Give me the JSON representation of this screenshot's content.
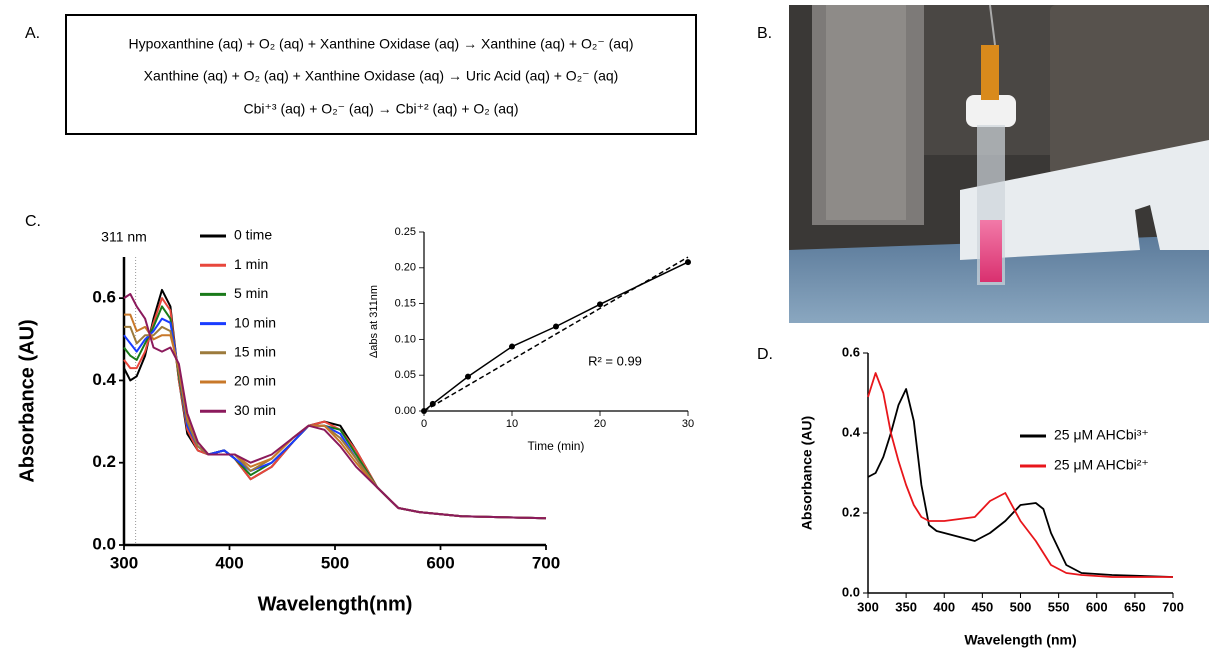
{
  "panels": {
    "a": "A.",
    "b": "B.",
    "c": "C.",
    "d": "D."
  },
  "reactions": [
    "Hypoxanthine (aq) + O₂ (aq) + Xanthine Oxidase (aq) → Xanthine (aq) + O₂⁻ (aq)",
    "Xanthine (aq) + O₂ (aq) + Xanthine Oxidase (aq) → Uric Acid (aq) + O₂⁻ (aq)",
    "Cbi⁺³ (aq) + O₂⁻ (aq) → Cbi⁺² (aq) + O₂ (aq)"
  ],
  "chart_data": [
    {
      "type": "line",
      "xlabel": "Wavelength(nm)",
      "ylabel": "Absorbance (AU)",
      "annotation": "311 nm",
      "marker_x": 311,
      "legend": "upper-center",
      "xlim": [
        300,
        700
      ],
      "xticks": [
        300,
        400,
        500,
        600,
        700
      ],
      "ylim": [
        0,
        0.7
      ],
      "yticks": [
        {
          "value": 0,
          "label": "0.0"
        },
        0.2,
        0.4,
        0.6
      ],
      "x": [
        300,
        306,
        312,
        320,
        328,
        336,
        344,
        352,
        360,
        370,
        380,
        395,
        405,
        420,
        440,
        460,
        475,
        490,
        505,
        520,
        540,
        560,
        580,
        620,
        700
      ],
      "series": [
        {
          "name": "0 time",
          "color": "#000000",
          "values": [
            0.43,
            0.4,
            0.41,
            0.46,
            0.55,
            0.62,
            0.58,
            0.4,
            0.27,
            0.23,
            0.22,
            0.23,
            0.21,
            0.16,
            0.19,
            0.25,
            0.29,
            0.3,
            0.29,
            0.23,
            0.14,
            0.09,
            0.08,
            0.07,
            0.065
          ]
        },
        {
          "name": "1 min",
          "color": "#e8473c",
          "values": [
            0.45,
            0.43,
            0.43,
            0.47,
            0.54,
            0.6,
            0.57,
            0.4,
            0.28,
            0.23,
            0.22,
            0.23,
            0.21,
            0.16,
            0.19,
            0.25,
            0.29,
            0.3,
            0.28,
            0.23,
            0.14,
            0.09,
            0.08,
            0.07,
            0.065
          ]
        },
        {
          "name": "5 min",
          "color": "#1a7a1a",
          "values": [
            0.48,
            0.46,
            0.45,
            0.49,
            0.53,
            0.58,
            0.55,
            0.41,
            0.29,
            0.24,
            0.22,
            0.23,
            0.21,
            0.17,
            0.2,
            0.25,
            0.29,
            0.29,
            0.28,
            0.22,
            0.14,
            0.09,
            0.08,
            0.07,
            0.065
          ]
        },
        {
          "name": "10 min",
          "color": "#1a3cff",
          "values": [
            0.51,
            0.49,
            0.47,
            0.5,
            0.52,
            0.55,
            0.54,
            0.42,
            0.29,
            0.24,
            0.22,
            0.23,
            0.21,
            0.18,
            0.2,
            0.25,
            0.29,
            0.29,
            0.27,
            0.21,
            0.14,
            0.09,
            0.08,
            0.07,
            0.065
          ]
        },
        {
          "name": "15 min",
          "color": "#9c7a3c",
          "values": [
            0.53,
            0.53,
            0.49,
            0.51,
            0.51,
            0.53,
            0.52,
            0.42,
            0.3,
            0.24,
            0.22,
            0.22,
            0.22,
            0.18,
            0.21,
            0.26,
            0.29,
            0.29,
            0.26,
            0.21,
            0.14,
            0.09,
            0.08,
            0.07,
            0.065
          ]
        },
        {
          "name": "20 min",
          "color": "#c8782a",
          "values": [
            0.56,
            0.56,
            0.52,
            0.53,
            0.5,
            0.51,
            0.51,
            0.43,
            0.31,
            0.25,
            0.22,
            0.22,
            0.22,
            0.19,
            0.21,
            0.26,
            0.29,
            0.29,
            0.25,
            0.2,
            0.14,
            0.09,
            0.08,
            0.07,
            0.065
          ]
        },
        {
          "name": "30 min",
          "color": "#8b1a5c",
          "values": [
            0.6,
            0.61,
            0.58,
            0.55,
            0.48,
            0.47,
            0.48,
            0.44,
            0.32,
            0.25,
            0.22,
            0.22,
            0.22,
            0.2,
            0.22,
            0.26,
            0.29,
            0.28,
            0.24,
            0.19,
            0.14,
            0.09,
            0.08,
            0.07,
            0.065
          ]
        }
      ]
    },
    {
      "type": "line",
      "xlabel": "Time (min)",
      "ylabel": "Δabs at 311nm",
      "annotation": "R² = 0.99",
      "color": "#000000",
      "xlim": [
        0,
        30
      ],
      "xticks": [
        0,
        10,
        20,
        30
      ],
      "ylim": [
        0,
        0.25
      ],
      "yticks": [
        {
          "value": 0,
          "label": "0.00"
        },
        {
          "value": 0.05,
          "label": "0.05"
        },
        {
          "value": 0.1,
          "label": "0.10"
        },
        {
          "value": 0.15,
          "label": "0.15"
        },
        {
          "value": 0.2,
          "label": "0.20"
        },
        {
          "value": 0.25,
          "label": "0.25"
        }
      ],
      "x": [
        0,
        1,
        5,
        10,
        15,
        20,
        30
      ],
      "values": [
        0,
        0.01,
        0.048,
        0.09,
        0.118,
        0.149,
        0.208
      ],
      "fit": {
        "x": [
          0,
          30
        ],
        "values": [
          0,
          0.215
        ],
        "style": "dashed"
      }
    },
    {
      "type": "line",
      "xlabel": "Wavelength (nm)",
      "ylabel": "Absorbance (AU)",
      "legend": "right",
      "xlim": [
        300,
        700
      ],
      "xticks": [
        300,
        350,
        400,
        450,
        500,
        550,
        600,
        650,
        700
      ],
      "ylim": [
        0,
        0.6
      ],
      "yticks": [
        {
          "value": 0,
          "label": "0.0"
        },
        0.2,
        0.4,
        0.6
      ],
      "x": [
        300,
        310,
        320,
        330,
        340,
        350,
        360,
        370,
        380,
        390,
        400,
        420,
        440,
        460,
        480,
        500,
        520,
        530,
        540,
        560,
        580,
        620,
        700
      ],
      "series": [
        {
          "name": "25 μM AHCbi³⁺",
          "color": "#000000",
          "values": [
            0.29,
            0.3,
            0.34,
            0.4,
            0.47,
            0.51,
            0.43,
            0.27,
            0.17,
            0.155,
            0.15,
            0.14,
            0.13,
            0.15,
            0.18,
            0.22,
            0.225,
            0.21,
            0.15,
            0.07,
            0.05,
            0.045,
            0.04
          ]
        },
        {
          "name": "25 μM AHCbi²⁺",
          "color": "#e8161b",
          "values": [
            0.49,
            0.55,
            0.5,
            0.4,
            0.33,
            0.27,
            0.22,
            0.19,
            0.18,
            0.18,
            0.18,
            0.185,
            0.19,
            0.23,
            0.25,
            0.18,
            0.13,
            0.1,
            0.07,
            0.05,
            0.045,
            0.04,
            0.04
          ]
        }
      ]
    }
  ]
}
